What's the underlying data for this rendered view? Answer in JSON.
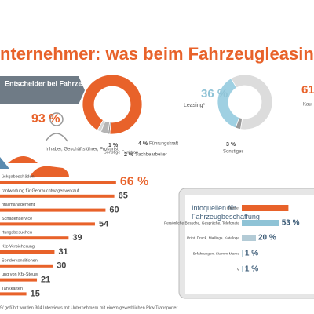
{
  "header": {
    "title": "nternehmer: was beim Fahrzeugleasing z"
  },
  "chart_data": [
    {
      "type": "pie",
      "title": "Entscheider bei Fahrzeugbeschaffung",
      "categories": [
        "Inhaber, Geschäftsführer, Prokurist",
        "Sonstige Funktion",
        "Führungskraft",
        "Sachbearbeiter"
      ],
      "values": [
        93,
        1,
        4,
        2
      ],
      "value_labels": [
        "93 %",
        "1 %",
        "4 %",
        "2 %"
      ],
      "colors": [
        "#e8622a",
        "#8c8c8c",
        "#b5b5b5",
        "#d6d6d6"
      ]
    },
    {
      "type": "pie",
      "categories": [
        "Leasing*",
        "Kau",
        "Sonstiges"
      ],
      "values": [
        36,
        61,
        3
      ],
      "value_labels": [
        "36 %",
        "61",
        "3 %"
      ],
      "colors": [
        "#9fd0e2",
        "#dcdcdc",
        "#9a9a9a"
      ]
    },
    {
      "type": "hbar",
      "categories": [
        "ückgabeschäden",
        "rantwortung für Gebrauchtwagenverkauf",
        "nfallmanagement",
        "Schadenservice",
        "rtungsbesuchen",
        "Kfz-Versicherung",
        "Sonderkonditionen",
        "ung von Kfz-Steuer",
        "Tankkarten"
      ],
      "values": [
        66,
        65,
        60,
        54,
        39,
        31,
        30,
        21,
        15
      ],
      "value_labels": [
        "66 %",
        "65",
        "60",
        "54",
        "39",
        "31",
        "30",
        "21",
        "15"
      ],
      "color": "#e8622a"
    },
    {
      "type": "hbar",
      "title": "Infoquellen für Fahrzeugbeschaffung",
      "categories": [
        "Internet",
        "Persönliche Besuche, Gespräche, Telefonate",
        "Print, Druck, Mailings, Kataloge",
        "Erfahrungen, Stamm-Marke",
        "TV"
      ],
      "values": [
        66,
        53,
        20,
        1,
        1
      ],
      "value_labels": [
        null,
        "53 %",
        "20 %",
        "1 %",
        "1 %"
      ],
      "colors": [
        "#e8622a",
        "#8fc3d6",
        "#b3cbd6",
        "#b3cbd6",
        "#b3cbd6"
      ]
    }
  ],
  "footer": {
    "text": "9/ geführt wurden 304 Interviews mit Unternehmern mit einem gewerblichen Pkw/Transporter"
  }
}
